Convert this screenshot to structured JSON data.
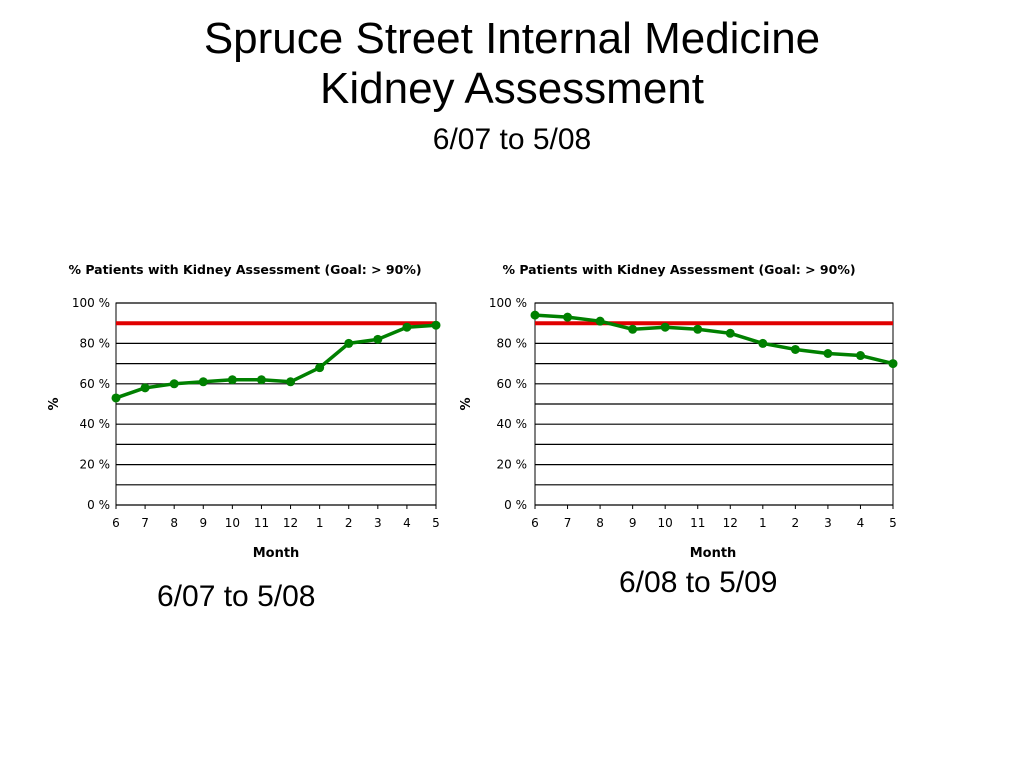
{
  "slide": {
    "title_line1": "Spruce Street Internal Medicine",
    "title_line2": "Kidney Assessment",
    "subtitle": "6/07 to 5/08",
    "caption_left": "6/07 to 5/08",
    "caption_right": "6/08 to 5/09"
  },
  "colors": {
    "series": "#008000",
    "goal": "#e00000",
    "grid": "#000000"
  },
  "chart_data": [
    {
      "type": "line",
      "title": "% Patients with Kidney Assessment (Goal: > 90%)",
      "xlabel": "Month",
      "ylabel": "%",
      "categories": [
        "6",
        "7",
        "8",
        "9",
        "10",
        "11",
        "12",
        "1",
        "2",
        "3",
        "4",
        "5"
      ],
      "values": [
        53,
        58,
        60,
        61,
        62,
        62,
        61,
        68,
        80,
        82,
        88,
        89
      ],
      "goal": 90,
      "ylim": [
        0,
        100
      ],
      "yticks": [
        "0 %",
        "20 %",
        "40 %",
        "60 %",
        "80 %",
        "100 %"
      ],
      "grid": true
    },
    {
      "type": "line",
      "title": "% Patients with Kidney Assessment (Goal: > 90%)",
      "xlabel": "Month",
      "ylabel": "%",
      "categories": [
        "6",
        "7",
        "8",
        "9",
        "10",
        "11",
        "12",
        "1",
        "2",
        "3",
        "4",
        "5"
      ],
      "values": [
        94,
        93,
        91,
        87,
        88,
        87,
        85,
        80,
        77,
        75,
        74,
        70
      ],
      "goal": 90,
      "ylim": [
        0,
        100
      ],
      "yticks": [
        "0 %",
        "20 %",
        "40 %",
        "60 %",
        "80 %",
        "100 %"
      ],
      "grid": true
    }
  ]
}
